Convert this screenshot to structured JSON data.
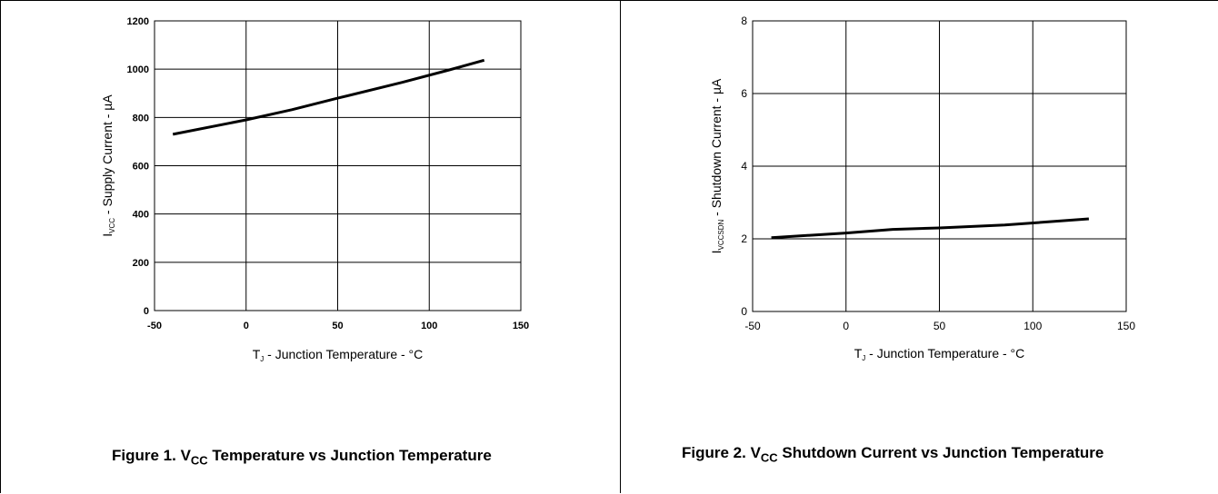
{
  "figures": [
    {
      "caption_prefix": "Figure 1. V",
      "caption_sub": "CC",
      "caption_suffix": " Temperature vs Junction Temperature"
    },
    {
      "caption_prefix": "Figure 2. V",
      "caption_sub": "CC",
      "caption_suffix": " Shutdown Current vs Junction Temperature"
    }
  ],
  "chart_data": [
    {
      "type": "line",
      "xlabel": "T_J - Junction Temperature - °C",
      "xlabel_main": "T",
      "xlabel_sub": "J",
      "xlabel_rest": " - Junction Temperature - °C",
      "ylabel": "I_VCC - Supply Current - µA",
      "ylabel_main": "I",
      "ylabel_sub": "VCC",
      "ylabel_rest": " - Supply Current - µA",
      "xlim": [
        -50,
        150
      ],
      "ylim": [
        0,
        1200
      ],
      "xticks": [
        -50,
        0,
        50,
        100,
        150
      ],
      "yticks": [
        0,
        200,
        400,
        600,
        800,
        1000,
        1200
      ],
      "grid": true,
      "series": [
        {
          "x": [
            -40,
            0,
            25,
            50,
            85,
            110,
            130
          ],
          "y": [
            730,
            790,
            832,
            880,
            945,
            995,
            1037
          ]
        }
      ]
    },
    {
      "type": "line",
      "xlabel": "T_J - Junction Temperature - °C",
      "xlabel_main": "T",
      "xlabel_sub": "J",
      "xlabel_rest": " - Junction Temperature - °C",
      "ylabel": "I_VCCSDN - Shutdown Current - µA",
      "ylabel_main": "I",
      "ylabel_sub": "VCCSDN",
      "ylabel_rest": " - Shutdown Current - µA",
      "xlim": [
        -50,
        150
      ],
      "ylim": [
        0,
        8
      ],
      "xticks": [
        -50,
        0,
        50,
        100,
        150
      ],
      "yticks": [
        0,
        2,
        4,
        6,
        8
      ],
      "grid": true,
      "series": [
        {
          "x": [
            -40,
            0,
            25,
            50,
            85,
            130
          ],
          "y": [
            2.03,
            2.16,
            2.26,
            2.3,
            2.38,
            2.55
          ]
        }
      ]
    }
  ]
}
